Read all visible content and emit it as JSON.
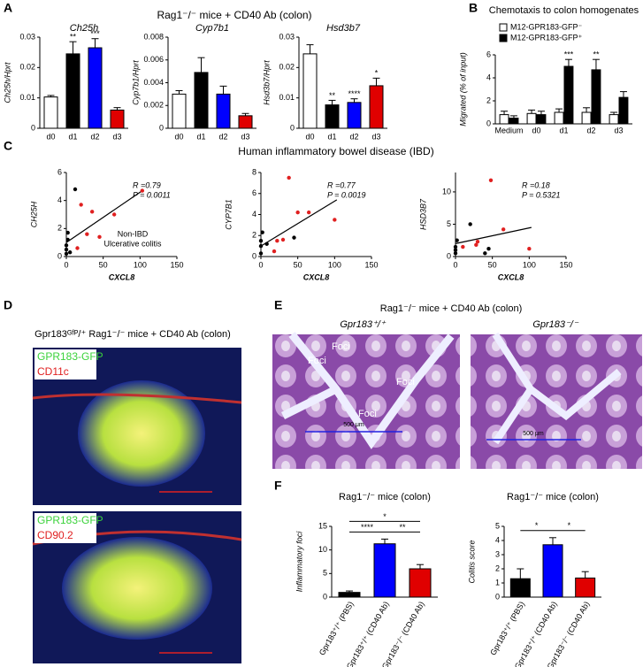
{
  "figure": {
    "panel_labels": [
      "A",
      "B",
      "C",
      "D",
      "E",
      "F"
    ],
    "a_title": "Rag1⁻/⁻ mice + CD40 Ab (colon)",
    "c_title": "Human inflammatory bowel disease (IBD)",
    "d": {
      "title": "Gpr183ᴳᶠᴾ/⁺ Rag1⁻/⁻ mice + CD40 Ab (colon)",
      "images": [
        {
          "channels": [
            "GPR183-GFP",
            "CD11c"
          ]
        },
        {
          "channels": [
            "GPR183-GFP",
            "CD90.2"
          ]
        }
      ]
    },
    "e": {
      "title": "Rag1⁻/⁻ mice + CD40 Ab (colon)",
      "images": [
        {
          "title": "Gpr183⁺/⁺",
          "foci": [
            "Foci",
            "Foci",
            "Foci",
            "Foci"
          ],
          "scale_bar": "500 μm"
        },
        {
          "title": "Gpr183⁻/⁻",
          "scale_bar": "500 μm"
        }
      ]
    }
  },
  "chart_data": [
    {
      "type": "bar",
      "title": "Ch25h",
      "y_label": "Ch25h/Hprt",
      "categories": [
        "d0",
        "d1",
        "d2",
        "d3"
      ],
      "values": [
        0.0103,
        0.0245,
        0.0265,
        0.006
      ],
      "errors": [
        0.0005,
        0.004,
        0.003,
        0.0008
      ],
      "colors": [
        "#ffffff",
        "#000000",
        "#0000ff",
        "#e00000"
      ],
      "significance": [
        null,
        "**",
        "***",
        null
      ],
      "ylim": [
        0,
        0.03
      ],
      "yticks": [
        0,
        0.01,
        0.02,
        0.03
      ]
    },
    {
      "type": "bar",
      "title": "Cyp7b1",
      "y_label": "Cyp7b1/Hprt",
      "categories": [
        "d0",
        "d1",
        "d2",
        "d3"
      ],
      "values": [
        0.003,
        0.0049,
        0.003,
        0.0011
      ],
      "errors": [
        0.0003,
        0.0013,
        0.0007,
        0.0002
      ],
      "colors": [
        "#ffffff",
        "#000000",
        "#0000ff",
        "#e00000"
      ],
      "ylim": [
        0,
        0.008
      ],
      "yticks": [
        0,
        0.002,
        0.004,
        0.006,
        0.008
      ]
    },
    {
      "type": "bar",
      "title": "Hsd3b7",
      "y_label": "Hsd3b7/Hprt",
      "categories": [
        "d0",
        "d1",
        "d2",
        "d3"
      ],
      "values": [
        0.0245,
        0.0077,
        0.0085,
        0.014
      ],
      "errors": [
        0.003,
        0.0015,
        0.0012,
        0.0025
      ],
      "colors": [
        "#ffffff",
        "#000000",
        "#0000ff",
        "#e00000"
      ],
      "significance": [
        null,
        "**",
        "****",
        "*"
      ],
      "ylim": [
        0,
        0.03
      ],
      "yticks": [
        0,
        0.01,
        0.02,
        0.03
      ]
    },
    {
      "type": "grouped_bar",
      "title": "Chemotaxis to colon homogenates",
      "y_label": "Migrated (% of input)",
      "categories": [
        "Medium",
        "d0",
        "d1",
        "d2",
        "d3"
      ],
      "series": [
        {
          "name": "M12-GPR183-GFP⁻",
          "color": "#ffffff",
          "values": [
            0.8,
            0.9,
            1.0,
            1.0,
            0.8
          ],
          "errors": [
            0.3,
            0.3,
            0.3,
            0.4,
            0.2
          ]
        },
        {
          "name": "M12-GPR183-GFP⁺",
          "color": "#000000",
          "values": [
            0.5,
            0.8,
            5.0,
            4.7,
            2.3
          ],
          "errors": [
            0.2,
            0.3,
            0.6,
            0.9,
            0.5
          ],
          "significance": [
            null,
            null,
            "***",
            "**",
            null
          ]
        }
      ],
      "ylim": [
        0,
        6
      ],
      "yticks": [
        0,
        2,
        4,
        6
      ]
    },
    {
      "type": "scatter",
      "x_label": "CXCL8",
      "y_label": "CH25H",
      "annotations": [
        "R =0.79",
        "P = 0.0011"
      ],
      "legend": true,
      "series": [
        {
          "name": "Non-IBD",
          "color": "#000000",
          "x": [
            0,
            0,
            0,
            2,
            2,
            12,
            5
          ],
          "values": [
            0.2,
            0.5,
            0.8,
            1.2,
            1.7,
            4.8,
            0.3
          ]
        },
        {
          "name": "Ulcerative colitis",
          "color": "#e02020",
          "x": [
            20,
            35,
            28,
            45,
            65,
            103,
            15
          ],
          "values": [
            3.7,
            3.2,
            1.6,
            1.4,
            3.0,
            4.7,
            0.6
          ]
        }
      ],
      "fit": {
        "x": [
          0,
          103
        ],
        "y": [
          1.0,
          4.7
        ]
      },
      "xlim": [
        0,
        150
      ],
      "xticks": [
        0,
        50,
        100,
        150
      ],
      "ylim": [
        0,
        6
      ],
      "yticks": [
        0,
        2,
        4,
        6
      ]
    },
    {
      "type": "scatter",
      "x_label": "CXCL8",
      "y_label": "CYP7B1",
      "annotations": [
        "R =0.77",
        "P = 0.0019"
      ],
      "series": [
        {
          "color": "#000000",
          "x": [
            0,
            0,
            0,
            2,
            45,
            8
          ],
          "values": [
            0.3,
            1.0,
            1.5,
            2.3,
            1.8,
            1.2
          ]
        },
        {
          "color": "#e02020",
          "x": [
            38,
            50,
            65,
            100,
            22,
            18,
            30
          ],
          "values": [
            7.5,
            4.2,
            4.2,
            3.5,
            1.5,
            0.5,
            1.6
          ]
        }
      ],
      "fit": {
        "x": [
          0,
          103
        ],
        "y": [
          1.0,
          5.4
        ]
      },
      "xlim": [
        0,
        150
      ],
      "xticks": [
        0,
        50,
        100,
        150
      ],
      "ylim": [
        0,
        8
      ],
      "yticks": [
        0,
        2,
        4,
        6,
        8
      ]
    },
    {
      "type": "scatter",
      "x_label": "CXCL8",
      "y_label": "HSD3B7",
      "annotations": [
        "R =0.18",
        "P = 0.5321"
      ],
      "series": [
        {
          "color": "#000000",
          "x": [
            0,
            0,
            0,
            2,
            20,
            40,
            45
          ],
          "values": [
            0.5,
            1.0,
            1.5,
            2.5,
            5.0,
            0.5,
            1.2
          ]
        },
        {
          "color": "#e02020",
          "x": [
            10,
            28,
            48,
            65,
            100,
            30
          ],
          "values": [
            1.5,
            1.8,
            11.8,
            4.2,
            1.2,
            2.3
          ]
        }
      ],
      "fit": {
        "x": [
          0,
          103
        ],
        "y": [
          2.0,
          4.5
        ]
      },
      "xlim": [
        0,
        150
      ],
      "xticks": [
        0,
        50,
        100,
        150
      ],
      "ylim": [
        0,
        13
      ],
      "yticks": [
        0,
        5,
        10
      ]
    },
    {
      "type": "bar",
      "title": "Rag1⁻/⁻ mice (colon)",
      "y_label": "Inflammatory foci",
      "categories": [
        "Gpr183⁺/⁺ (PBS)",
        "Gpr183⁺/⁺ (CD40 Ab)",
        "Gpr183⁻/⁻ (CD40 Ab)"
      ],
      "values": [
        1.0,
        11.3,
        6.0
      ],
      "errors": [
        0.3,
        1.0,
        0.9
      ],
      "colors": [
        "#000000",
        "#0000ff",
        "#e00000"
      ],
      "comparisons": [
        {
          "between": [
            "Gpr183⁺/⁺ (PBS)",
            "Gpr183⁺/⁺ (CD40 Ab)"
          ],
          "label": "****"
        },
        {
          "between": [
            "Gpr183⁺/⁺ (PBS)",
            "Gpr183⁻/⁻ (CD40 Ab)"
          ],
          "label": "*"
        },
        {
          "between": [
            "Gpr183⁺/⁺ (CD40 Ab)",
            "Gpr183⁻/⁻ (CD40 Ab)"
          ],
          "label": "**"
        }
      ],
      "ylim": [
        0,
        15
      ],
      "yticks": [
        0,
        5,
        10,
        15
      ]
    },
    {
      "type": "bar",
      "title": "Rag1⁻/⁻ mice (colon)",
      "y_label": "Colitis score",
      "categories": [
        "Gpr183⁺/⁺ (PBS)",
        "Gpr183⁺/⁺ (CD40 Ab)",
        "Gpr183⁻/⁻ (CD40 Ab)"
      ],
      "values": [
        1.3,
        3.7,
        1.35
      ],
      "errors": [
        0.7,
        0.5,
        0.45
      ],
      "colors": [
        "#000000",
        "#0000ff",
        "#e00000"
      ],
      "comparisons": [
        {
          "between": [
            "Gpr183⁺/⁺ (PBS)",
            "Gpr183⁺/⁺ (CD40 Ab)"
          ],
          "label": "*"
        },
        {
          "between": [
            "Gpr183⁺/⁺ (CD40 Ab)",
            "Gpr183⁻/⁻ (CD40 Ab)"
          ],
          "label": "*"
        }
      ],
      "ylim": [
        0,
        5
      ],
      "yticks": [
        0,
        1,
        2,
        3,
        4,
        5
      ]
    }
  ]
}
